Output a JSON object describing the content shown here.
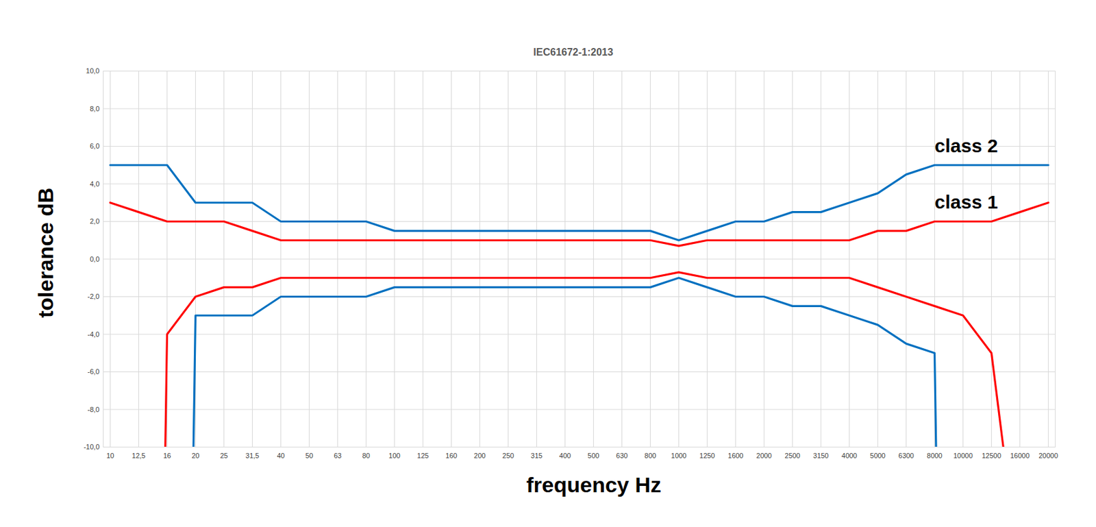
{
  "chart_data": {
    "type": "line",
    "title": "IEC61672-1:2013",
    "x_label": "frequency Hz",
    "y_label": "tolerance dB",
    "categories": [
      "10",
      "12,5",
      "16",
      "20",
      "25",
      "31,5",
      "40",
      "50",
      "63",
      "80",
      "100",
      "125",
      "160",
      "200",
      "250",
      "315",
      "400",
      "500",
      "630",
      "800",
      "1000",
      "1250",
      "1600",
      "2000",
      "2500",
      "3150",
      "4000",
      "5000",
      "6300",
      "8000",
      "10000",
      "12500",
      "16000",
      "20000"
    ],
    "ylim": [
      -10,
      10
    ],
    "yticks": [
      {
        "value": -10,
        "label": "-10,0"
      },
      {
        "value": -8,
        "label": "-8,0"
      },
      {
        "value": -6,
        "label": "-6,0"
      },
      {
        "value": -4,
        "label": "-4,0"
      },
      {
        "value": -2,
        "label": "-2,0"
      },
      {
        "value": 0,
        "label": "0,0"
      },
      {
        "value": 2,
        "label": "2,0"
      },
      {
        "value": 4,
        "label": "4,0"
      },
      {
        "value": 6,
        "label": "6,0"
      },
      {
        "value": 8,
        "label": "8,0"
      },
      {
        "value": 10,
        "label": "10,0"
      }
    ],
    "grid": true,
    "series": [
      {
        "name": "class 2",
        "color": "#0070c0",
        "label_x": "8000",
        "label_y": 6.0,
        "upper": [
          5,
          5,
          5,
          3,
          3,
          3,
          2,
          2,
          2,
          2,
          1.5,
          1.5,
          1.5,
          1.5,
          1.5,
          1.5,
          1.5,
          1.5,
          1.5,
          1.5,
          1,
          1.5,
          2,
          2,
          2.5,
          2.5,
          3,
          3.5,
          4.5,
          5,
          5,
          5,
          5,
          5
        ],
        "lower": [
          -100,
          -100,
          -100,
          -3,
          -3,
          -3,
          -2,
          -2,
          -2,
          -2,
          -1.5,
          -1.5,
          -1.5,
          -1.5,
          -1.5,
          -1.5,
          -1.5,
          -1.5,
          -1.5,
          -1.5,
          -1,
          -1.5,
          -2,
          -2,
          -2.5,
          -2.5,
          -3,
          -3.5,
          -4.5,
          -5,
          -100,
          -100,
          -100,
          -100
        ]
      },
      {
        "name": "class 1",
        "color": "#ff0000",
        "label_x": "8000",
        "label_y": 3.0,
        "upper": [
          3,
          2.5,
          2,
          2,
          2,
          1.5,
          1,
          1,
          1,
          1,
          1,
          1,
          1,
          1,
          1,
          1,
          1,
          1,
          1,
          1,
          0.7,
          1,
          1,
          1,
          1,
          1,
          1,
          1.5,
          1.5,
          2,
          2,
          2,
          2.5,
          3
        ],
        "lower": [
          -100,
          -100,
          -4,
          -2,
          -1.5,
          -1.5,
          -1,
          -1,
          -1,
          -1,
          -1,
          -1,
          -1,
          -1,
          -1,
          -1,
          -1,
          -1,
          -1,
          -1,
          -0.7,
          -1,
          -1,
          -1,
          -1,
          -1,
          -1,
          -1.5,
          -2,
          -2.5,
          -3,
          -5,
          -17,
          -100
        ]
      }
    ]
  }
}
